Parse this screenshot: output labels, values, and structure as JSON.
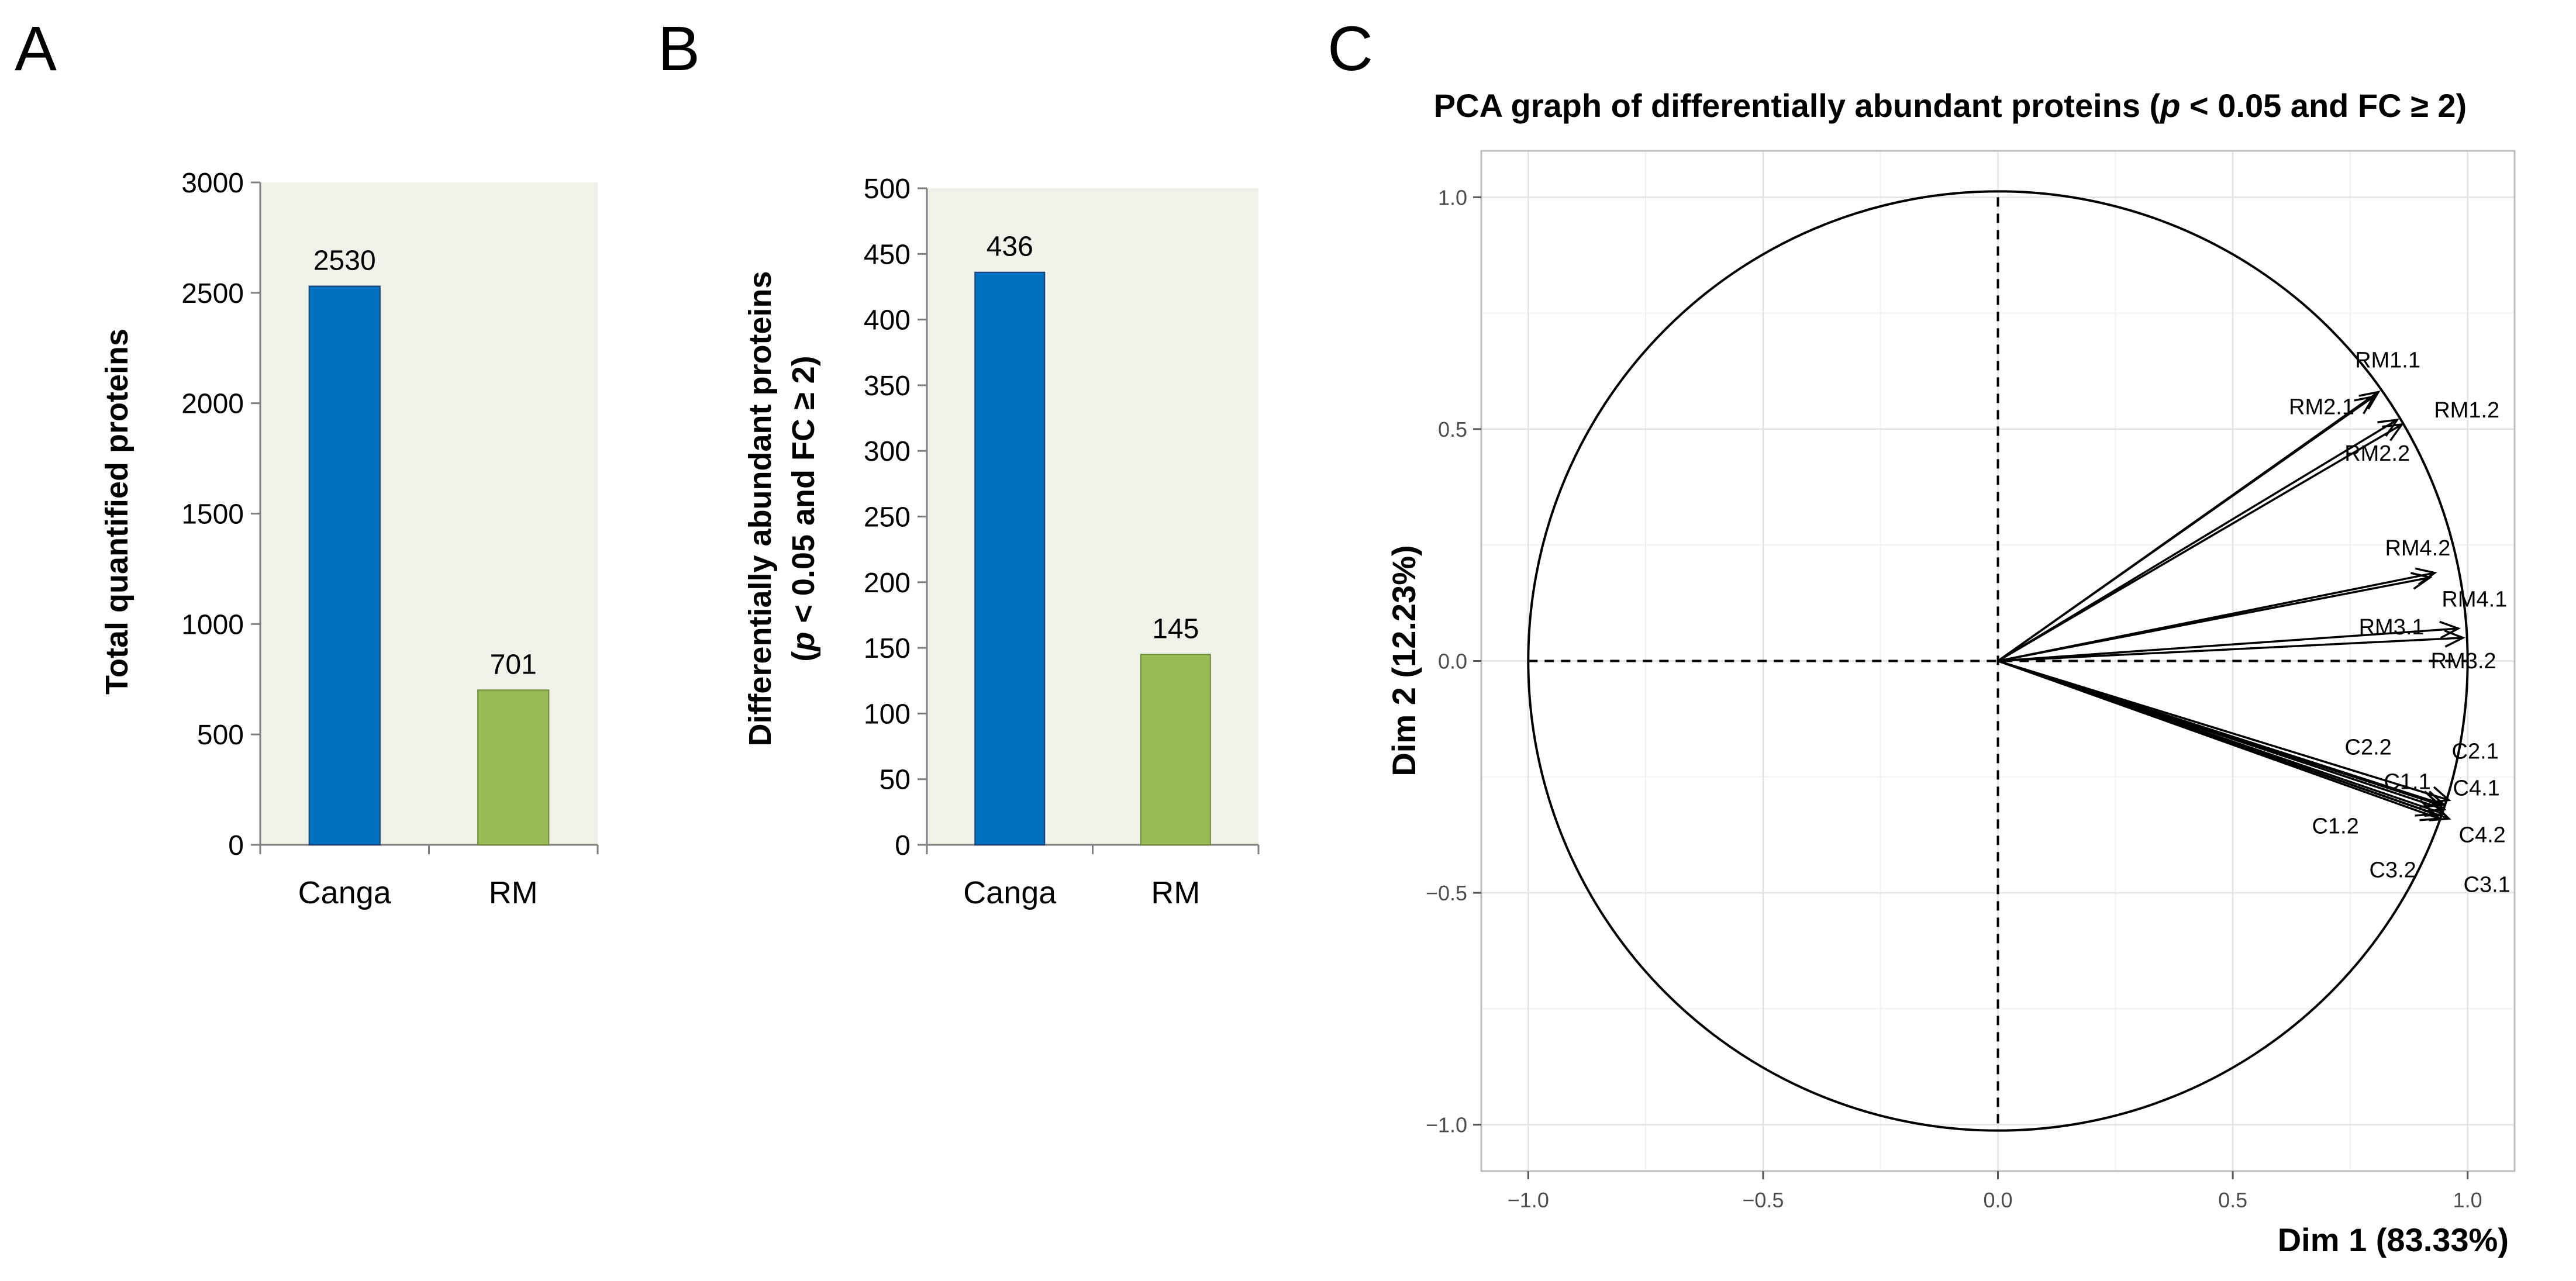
{
  "colors": {
    "canga": "#0070c0",
    "rm": "#9bbb59",
    "panel_bg": "#eef2e8",
    "axis": "#808080",
    "ink": "#000000"
  },
  "chart_data": [
    {
      "panel": "A",
      "type": "bar",
      "title": "",
      "ylabel": "Total quantified proteins",
      "xlabel": "",
      "categories": [
        "Canga",
        "RM"
      ],
      "values": [
        2530,
        701
      ],
      "data_labels": [
        "2530",
        "701"
      ],
      "ylim": [
        0,
        3000
      ],
      "yticks": [
        0,
        500,
        1000,
        1500,
        2000,
        2500,
        3000
      ],
      "ytick_labels": [
        "0",
        "500",
        "1000",
        "1500",
        "2000",
        "2500",
        "3000"
      ]
    },
    {
      "panel": "B",
      "type": "bar",
      "title": "",
      "ylabel_line1": "Differentially abundant proteins",
      "ylabel_line2_italic": "p",
      "ylabel_line2_rest": " < 0.05 and FC ≥ 2)",
      "ylabel_line2_open": "(",
      "xlabel": "",
      "categories": [
        "Canga",
        "RM"
      ],
      "values": [
        436,
        145
      ],
      "data_labels": [
        "436",
        "145"
      ],
      "ylim": [
        0,
        500
      ],
      "yticks": [
        0,
        50,
        100,
        150,
        200,
        250,
        300,
        350,
        400,
        450,
        500
      ],
      "ytick_labels": [
        "0",
        "50",
        "100",
        "150",
        "200",
        "250",
        "300",
        "350",
        "400",
        "450",
        "500"
      ]
    },
    {
      "panel": "C",
      "type": "scatter",
      "title_part1": "PCA graph of differentially abundant proteins (",
      "title_italic": "p",
      "title_part2": " < 0.05 and FC ≥ 2)",
      "xlabel": "Dim 1 (83.33%)",
      "ylabel": "Dim 2 (12.23%)",
      "xlim": [
        -1.1,
        1.1
      ],
      "ylim": [
        -1.1,
        1.1
      ],
      "xticks": [
        -1.0,
        -0.5,
        0.0,
        0.5,
        1.0
      ],
      "xtick_labels": [
        "−1.0",
        "−0.5",
        "0.0",
        "0.5",
        "1.0"
      ],
      "yticks": [
        -1.0,
        -0.5,
        0.0,
        0.5,
        1.0
      ],
      "ytick_labels": [
        "−1.0",
        "−0.5",
        "0.0",
        "0.5",
        "1.0"
      ],
      "unit_circle": true,
      "vectors": [
        {
          "name": "RM1.1",
          "x": 0.81,
          "y": 0.58
        },
        {
          "name": "RM2.1",
          "x": 0.8,
          "y": 0.57
        },
        {
          "name": "RM1.2",
          "x": 0.86,
          "y": 0.51
        },
        {
          "name": "RM2.2",
          "x": 0.85,
          "y": 0.52
        },
        {
          "name": "RM4.2",
          "x": 0.93,
          "y": 0.19
        },
        {
          "name": "RM4.1",
          "x": 0.92,
          "y": 0.18
        },
        {
          "name": "RM3.1",
          "x": 0.98,
          "y": 0.07
        },
        {
          "name": "RM3.2",
          "x": 0.99,
          "y": 0.05
        },
        {
          "name": "C2.2",
          "x": 0.95,
          "y": -0.32
        },
        {
          "name": "C2.1",
          "x": 0.96,
          "y": -0.3
        },
        {
          "name": "C1.1",
          "x": 0.94,
          "y": -0.31
        },
        {
          "name": "C4.1",
          "x": 0.95,
          "y": -0.31
        },
        {
          "name": "C1.2",
          "x": 0.93,
          "y": -0.33
        },
        {
          "name": "C4.2",
          "x": 0.95,
          "y": -0.33
        },
        {
          "name": "C3.2",
          "x": 0.94,
          "y": -0.34
        },
        {
          "name": "C3.1",
          "x": 0.96,
          "y": -0.34
        }
      ]
    }
  ],
  "panel_letters": [
    "A",
    "B",
    "C"
  ]
}
